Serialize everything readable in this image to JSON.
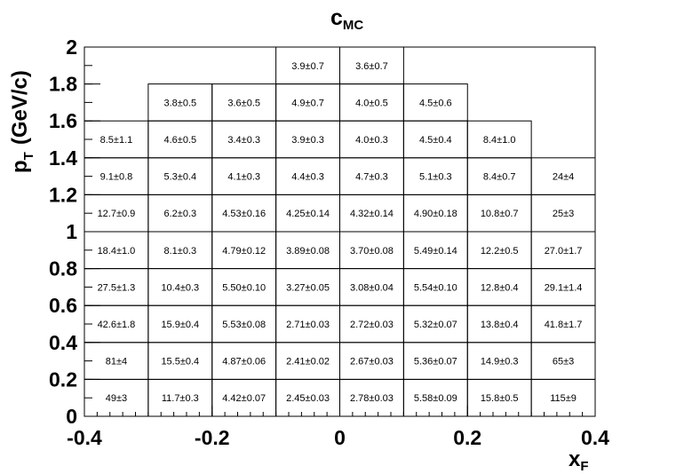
{
  "chart_data": {
    "type": "table",
    "title": "c",
    "title_subscript": "MC",
    "xlabel": "x",
    "xlabel_subscript": "F",
    "ylabel": "p",
    "ylabel_subscript": "T",
    "ylabel_unit": "(GeV/c)",
    "xlim": [
      -0.4,
      0.4
    ],
    "ylim": [
      0,
      2
    ],
    "xticks": [
      "-0.4",
      "-0.2",
      "0",
      "0.2",
      "0.4"
    ],
    "yticks": [
      "0",
      "0.2",
      "0.4",
      "0.6",
      "0.8",
      "1",
      "1.2",
      "1.4",
      "1.6",
      "1.8",
      "2"
    ],
    "x_bin_edges": [
      -0.4,
      -0.3,
      -0.2,
      -0.1,
      0.0,
      0.1,
      0.2,
      0.3,
      0.4
    ],
    "y_bin_edges": [
      0,
      0.2,
      0.4,
      0.6,
      0.8,
      1.0,
      1.2,
      1.4,
      1.6,
      1.8,
      2.0
    ],
    "grid": true,
    "cells": [
      [
        "49±3",
        "11.7±0.3",
        "4.42±0.07",
        "2.45±0.03",
        "2.78±0.03",
        "5.58±0.09",
        "15.8±0.5",
        "115±9"
      ],
      [
        "81±4",
        "15.5±0.4",
        "4.87±0.06",
        "2.41±0.02",
        "2.67±0.03",
        "5.36±0.07",
        "14.9±0.3",
        "65±3"
      ],
      [
        "42.6±1.8",
        "15.9±0.4",
        "5.53±0.08",
        "2.71±0.03",
        "2.72±0.03",
        "5.32±0.07",
        "13.8±0.4",
        "41.8±1.7"
      ],
      [
        "27.5±1.3",
        "10.4±0.3",
        "5.50±0.10",
        "3.27±0.05",
        "3.08±0.04",
        "5.54±0.10",
        "12.8±0.4",
        "29.1±1.4"
      ],
      [
        "18.4±1.0",
        "8.1±0.3",
        "4.79±0.12",
        "3.89±0.08",
        "3.70±0.08",
        "5.49±0.14",
        "12.2±0.5",
        "27.0±1.7"
      ],
      [
        "12.7±0.9",
        "6.2±0.3",
        "4.53±0.16",
        "4.25±0.14",
        "4.32±0.14",
        "4.90±0.18",
        "10.8±0.7",
        "25±3"
      ],
      [
        "9.1±0.8",
        "5.3±0.4",
        "4.1±0.3",
        "4.4±0.3",
        "4.7±0.3",
        "5.1±0.3",
        "8.4±0.7",
        "24±4"
      ],
      [
        "8.5±1.1",
        "4.6±0.5",
        "3.4±0.3",
        "3.9±0.3",
        "4.0±0.3",
        "4.5±0.4",
        "8.4±1.0",
        null
      ],
      [
        null,
        "3.8±0.5",
        "3.6±0.5",
        "4.9±0.7",
        "4.0±0.5",
        "4.5±0.6",
        null,
        null
      ],
      [
        null,
        null,
        null,
        "3.9±0.7",
        "3.6±0.7",
        null,
        null,
        null
      ]
    ]
  }
}
